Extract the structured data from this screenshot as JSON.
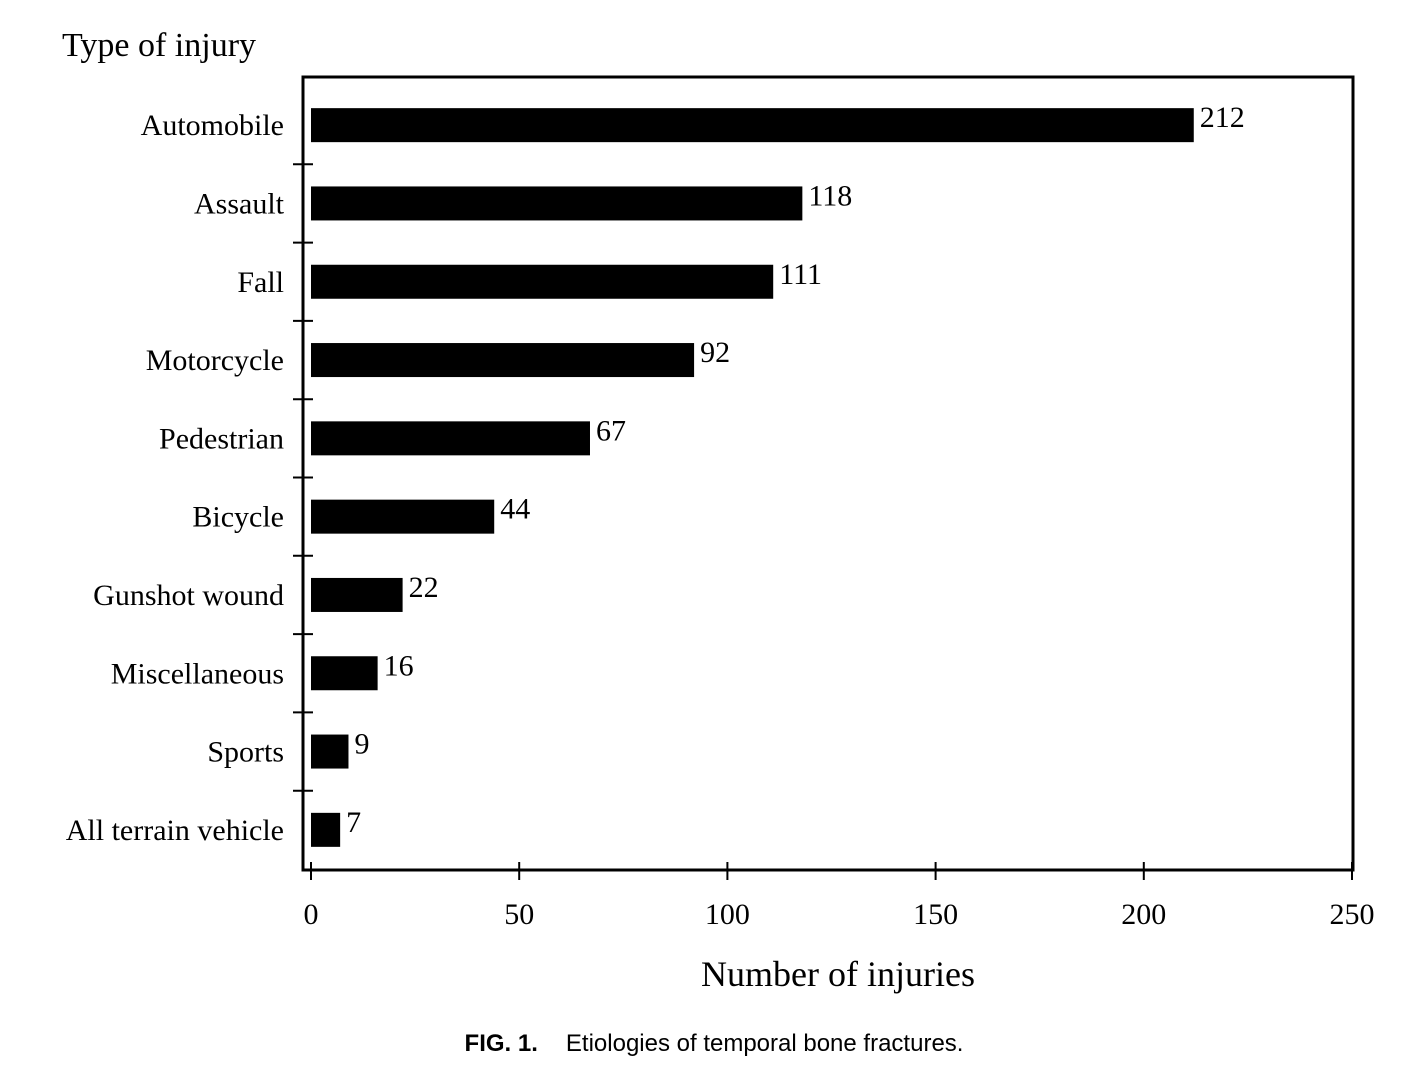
{
  "chart_data": {
    "type": "bar",
    "orientation": "horizontal",
    "y_axis_title": "Type of injury",
    "xlabel": "Number of injuries",
    "categories": [
      "Automobile",
      "Assault",
      "Fall",
      "Motorcycle",
      "Pedestrian",
      "Bicycle",
      "Gunshot wound",
      "Miscellaneous",
      "Sports",
      "All terrain vehicle"
    ],
    "values": [
      212,
      118,
      111,
      92,
      67,
      44,
      22,
      16,
      9,
      7
    ],
    "data_labels": [
      "212",
      "118",
      "111",
      "92",
      "67",
      "44",
      "22",
      "16",
      "9",
      "7"
    ],
    "xlim": [
      0,
      250
    ],
    "x_ticks": [
      0,
      50,
      100,
      150,
      200,
      250
    ],
    "x_tick_labels": [
      "0",
      "50",
      "100",
      "150",
      "200",
      "250"
    ],
    "grid": false,
    "legend": "none",
    "bar_color": "#000000"
  },
  "caption": {
    "label": "FIG. 1.",
    "text": "Etiologies of temporal bone fractures."
  }
}
